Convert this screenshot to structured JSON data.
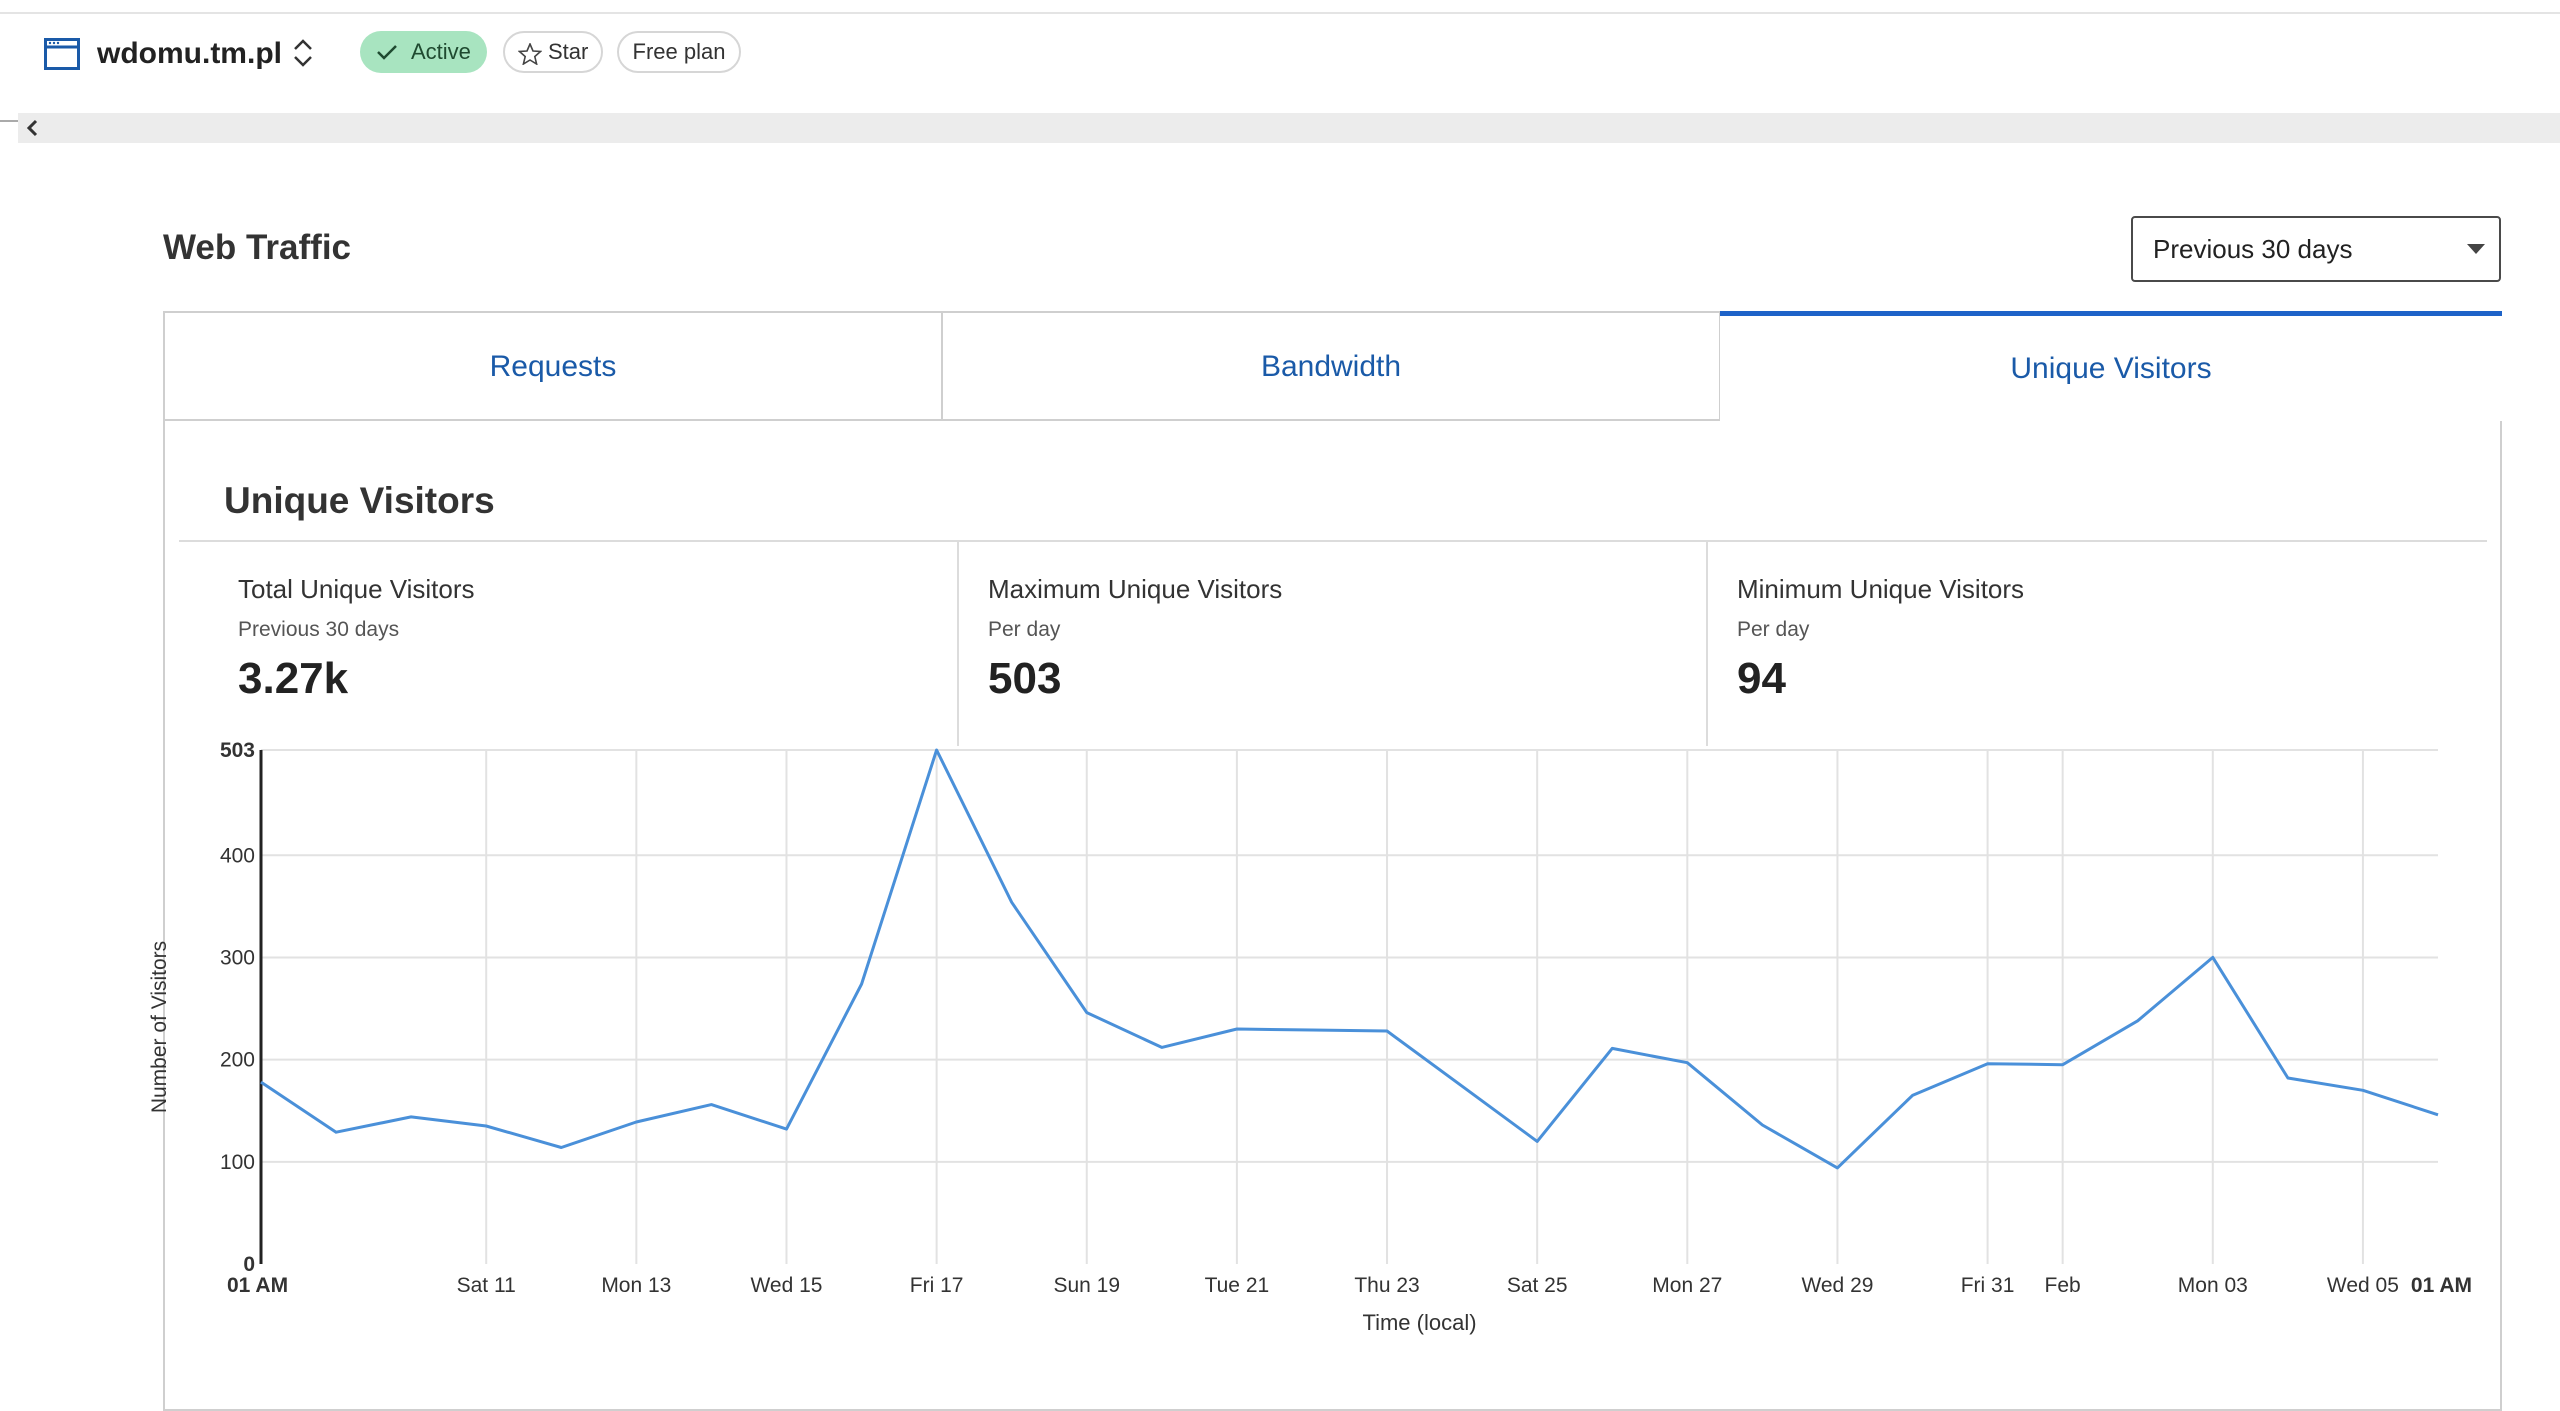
{
  "header": {
    "site_name": "wdomu.tm.pl",
    "status_label": "Active",
    "star_label": "Star",
    "plan_label": "Free plan"
  },
  "page": {
    "title": "Web Traffic",
    "range_select": "Previous 30 days"
  },
  "tabs": [
    {
      "label": "Requests",
      "active": false
    },
    {
      "label": "Bandwidth",
      "active": false
    },
    {
      "label": "Unique Visitors",
      "active": true
    }
  ],
  "section": {
    "title": "Unique Visitors",
    "stats": [
      {
        "label": "Total Unique Visitors",
        "sub": "Previous 30 days",
        "value": "3.27k"
      },
      {
        "label": "Maximum Unique Visitors",
        "sub": "Per day",
        "value": "503"
      },
      {
        "label": "Minimum Unique Visitors",
        "sub": "Per day",
        "value": "94"
      }
    ]
  },
  "colors": {
    "accent": "#1e63c8",
    "tab_text": "#1a5aa8",
    "line": "#4a90d9",
    "active_badge": "#a8e4c0"
  },
  "chart_data": {
    "type": "line",
    "xlabel": "Time (local)",
    "ylabel": "Number of Visitors",
    "ylim": [
      0,
      503
    ],
    "yticks": [
      "0",
      "100",
      "200",
      "300",
      "400",
      "503"
    ],
    "xticks": [
      "01 AM",
      "Sat 11",
      "Mon 13",
      "Wed 15",
      "Fri 17",
      "Sun 19",
      "Tue 21",
      "Thu 23",
      "Sat 25",
      "Mon 27",
      "Wed 29",
      "Fri 31",
      "Feb",
      "Mon 03",
      "Wed 05",
      "01 AM"
    ],
    "grid": true,
    "series": [
      {
        "values": [
          178,
          129,
          144,
          135,
          114,
          139,
          156,
          132,
          274,
          503,
          354,
          246,
          212,
          230,
          229,
          228,
          174,
          120,
          211,
          197,
          136,
          94,
          165,
          196,
          195,
          238,
          300,
          182,
          170,
          146
        ]
      }
    ]
  }
}
